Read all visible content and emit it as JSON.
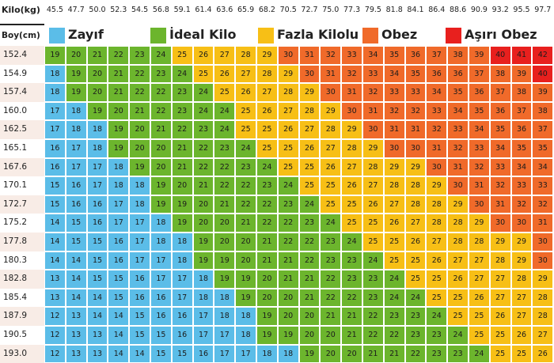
{
  "chart_data": {
    "type": "heatmap",
    "x_header": "Kilo(kg)",
    "y_header": "Boy(cm)",
    "weights": [
      "45.5",
      "47.7",
      "50.0",
      "52.3",
      "54.5",
      "56.8",
      "59.1",
      "61.4",
      "63.6",
      "65.9",
      "68.2",
      "70.5",
      "72.7",
      "75.0",
      "77.3",
      "79.5",
      "81.8",
      "84.1",
      "86.4",
      "88.6",
      "90.9",
      "93.2",
      "95.5",
      "97.7"
    ],
    "heights": [
      "152.4",
      "154.9",
      "157.4",
      "160.0",
      "162.5",
      "165.1",
      "167.6",
      "170.1",
      "172.7",
      "175.2",
      "177.8",
      "180.3",
      "182.8",
      "185.4",
      "187.9",
      "190.5",
      "193.0"
    ],
    "values": [
      [
        19,
        20,
        21,
        22,
        23,
        24,
        25,
        26,
        27,
        28,
        29,
        30,
        31,
        32,
        33,
        34,
        35,
        36,
        37,
        38,
        39,
        40,
        41,
        42
      ],
      [
        18,
        19,
        20,
        21,
        22,
        23,
        24,
        25,
        26,
        27,
        28,
        29,
        30,
        31,
        32,
        33,
        34,
        35,
        36,
        36,
        37,
        38,
        39,
        40
      ],
      [
        18,
        19,
        20,
        21,
        22,
        22,
        23,
        24,
        25,
        26,
        27,
        28,
        29,
        30,
        31,
        32,
        33,
        33,
        34,
        35,
        36,
        37,
        38,
        39
      ],
      [
        17,
        18,
        19,
        20,
        21,
        22,
        23,
        24,
        24,
        25,
        26,
        27,
        28,
        29,
        30,
        31,
        32,
        32,
        33,
        34,
        35,
        36,
        37,
        38
      ],
      [
        17,
        18,
        18,
        19,
        20,
        21,
        22,
        23,
        24,
        25,
        25,
        26,
        27,
        28,
        29,
        30,
        31,
        31,
        32,
        33,
        34,
        35,
        36,
        37
      ],
      [
        16,
        17,
        18,
        19,
        20,
        20,
        21,
        22,
        23,
        24,
        25,
        25,
        26,
        27,
        28,
        29,
        30,
        30,
        31,
        32,
        33,
        34,
        35,
        35
      ],
      [
        16,
        17,
        17,
        18,
        19,
        20,
        21,
        22,
        22,
        23,
        24,
        25,
        25,
        26,
        27,
        28,
        29,
        29,
        30,
        31,
        32,
        33,
        34,
        34
      ],
      [
        15,
        16,
        17,
        18,
        18,
        19,
        20,
        21,
        22,
        22,
        23,
        24,
        25,
        25,
        26,
        27,
        28,
        28,
        29,
        30,
        31,
        32,
        33,
        33
      ],
      [
        15,
        16,
        16,
        17,
        18,
        19,
        19,
        20,
        21,
        22,
        22,
        23,
        24,
        25,
        25,
        26,
        27,
        28,
        28,
        29,
        30,
        31,
        32,
        32
      ],
      [
        14,
        15,
        16,
        17,
        17,
        18,
        19,
        20,
        20,
        21,
        22,
        22,
        23,
        24,
        25,
        25,
        26,
        27,
        28,
        28,
        29,
        30,
        30,
        31
      ],
      [
        14,
        15,
        15,
        16,
        17,
        18,
        18,
        19,
        20,
        20,
        21,
        22,
        22,
        23,
        24,
        25,
        25,
        26,
        27,
        28,
        28,
        29,
        29,
        30
      ],
      [
        14,
        14,
        15,
        16,
        17,
        17,
        18,
        19,
        19,
        20,
        21,
        21,
        22,
        23,
        23,
        24,
        25,
        25,
        26,
        27,
        27,
        28,
        29,
        30
      ],
      [
        13,
        14,
        15,
        15,
        16,
        17,
        17,
        18,
        19,
        19,
        20,
        21,
        21,
        22,
        23,
        23,
        24,
        25,
        25,
        26,
        27,
        27,
        28,
        29
      ],
      [
        13,
        14,
        14,
        15,
        16,
        16,
        17,
        18,
        18,
        19,
        20,
        20,
        21,
        22,
        22,
        23,
        24,
        24,
        25,
        25,
        26,
        27,
        27,
        28
      ],
      [
        12,
        13,
        14,
        14,
        15,
        16,
        16,
        17,
        18,
        18,
        19,
        20,
        20,
        21,
        21,
        22,
        23,
        23,
        24,
        25,
        25,
        26,
        27,
        28
      ],
      [
        12,
        13,
        13,
        14,
        15,
        15,
        16,
        17,
        17,
        18,
        19,
        19,
        20,
        20,
        21,
        22,
        22,
        23,
        23,
        24,
        25,
        25,
        26,
        27
      ],
      [
        12,
        13,
        13,
        14,
        14,
        15,
        15,
        16,
        17,
        17,
        18,
        18,
        19,
        20,
        20,
        21,
        21,
        22,
        23,
        23,
        24,
        25,
        25,
        26
      ]
    ],
    "categories": [
      {
        "label": "Zayıf",
        "max": 18,
        "color": "#5bbde8"
      },
      {
        "label": "İdeal Kilo",
        "max": 24,
        "color": "#6cb52d"
      },
      {
        "label": "Fazla Kilolu",
        "max": 29,
        "color": "#f7bf16"
      },
      {
        "label": "Obez",
        "max": 39,
        "color": "#f06a2a"
      },
      {
        "label": "Aşırı Obez",
        "max": 99,
        "color": "#e8201e"
      }
    ],
    "colors": {
      "row_label_odd": "#f8ece6",
      "row_label_even": "#ffffff",
      "text": "#222222"
    }
  }
}
